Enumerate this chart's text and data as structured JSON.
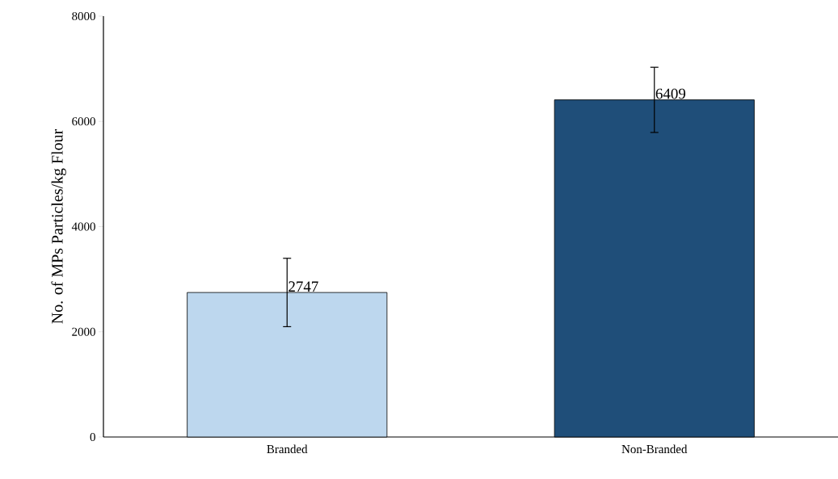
{
  "chart_data": {
    "type": "bar",
    "ylabel": "No. of MPs Particles/kg Flour",
    "categories": [
      "Branded",
      "Non-Branded"
    ],
    "values": [
      2747,
      6409
    ],
    "errors": [
      650,
      620
    ],
    "colors": [
      "#bdd7ee",
      "#1f4e79"
    ],
    "ylim": [
      0,
      8000
    ],
    "yticks": [
      0,
      2000,
      4000,
      6000,
      8000
    ],
    "data_labels": true
  }
}
